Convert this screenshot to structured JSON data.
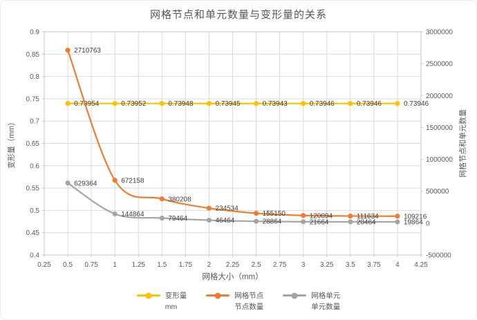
{
  "chart_data": {
    "type": "line",
    "title": "网格节点和单元数量与变形量的关系",
    "x": [
      0.5,
      1,
      1.5,
      2,
      2.5,
      3,
      3.5,
      4
    ],
    "series": [
      {
        "name": "变形量 mm",
        "legend": [
          "变形量",
          "mm"
        ],
        "axis": "left",
        "color": "#FFC000",
        "values": [
          0.73954,
          0.73952,
          0.73948,
          0.73945,
          0.73943,
          0.73946,
          0.73946,
          0.73946
        ],
        "labels": [
          "0.73954",
          "0.73952",
          "0.73948",
          "0.73945",
          "0.73943",
          "0.73946",
          "0.73946",
          "0.73946"
        ]
      },
      {
        "name": "网格节点 节点数量",
        "legend": [
          "网格节点",
          "节点数量"
        ],
        "axis": "right",
        "color": "#ED7D31",
        "values": [
          2710763,
          672158,
          380208,
          234534,
          155150,
          120094,
          111634,
          109216
        ],
        "labels": [
          "2710763",
          "672158",
          "380208",
          "234534",
          "155150",
          "120094",
          "111634",
          "109216"
        ]
      },
      {
        "name": "网格单元 单元数量",
        "legend": [
          "网格单元",
          "单元数量"
        ],
        "axis": "right",
        "color": "#A5A5A5",
        "values": [
          629364,
          144864,
          79464,
          46464,
          28864,
          21664,
          20464,
          19864
        ],
        "labels": [
          "629364",
          "144864",
          "79464",
          "46464",
          "28864",
          "21664",
          "20464",
          "19864"
        ]
      }
    ],
    "x_axis": {
      "label": "网格大小（mm）",
      "min": 0.25,
      "max": 4.25,
      "tick_step": 0.25,
      "ticks": [
        "0.25",
        "0.5",
        "0.75",
        "1",
        "1.25",
        "1.5",
        "1.75",
        "2",
        "2.25",
        "2.5",
        "2.75",
        "3",
        "3.25",
        "3.5",
        "3.75",
        "4",
        "4.25"
      ]
    },
    "y_left": {
      "label": "变形量（mm）",
      "min": 0.4,
      "max": 0.9,
      "tick_step": 0.05,
      "ticks": [
        "0.4",
        "0.45",
        "0.5",
        "0.55",
        "0.6",
        "0.65",
        "0.7",
        "0.75",
        "0.8",
        "0.85",
        "0.9"
      ]
    },
    "y_right": {
      "label": "网格节点和单元数量",
      "min": -500000,
      "max": 3000000,
      "tick_step": 500000,
      "ticks": [
        "-500000",
        "0",
        "500000",
        "1000000",
        "1500000",
        "2000000",
        "2500000",
        "3000000"
      ]
    },
    "grid": true,
    "legend_position": "bottom",
    "style": {
      "gridline_color": "#D9D9D9",
      "border_color": "#C6C6C6",
      "tick_text_color": "#595959",
      "data_label_color": "#404040"
    }
  }
}
